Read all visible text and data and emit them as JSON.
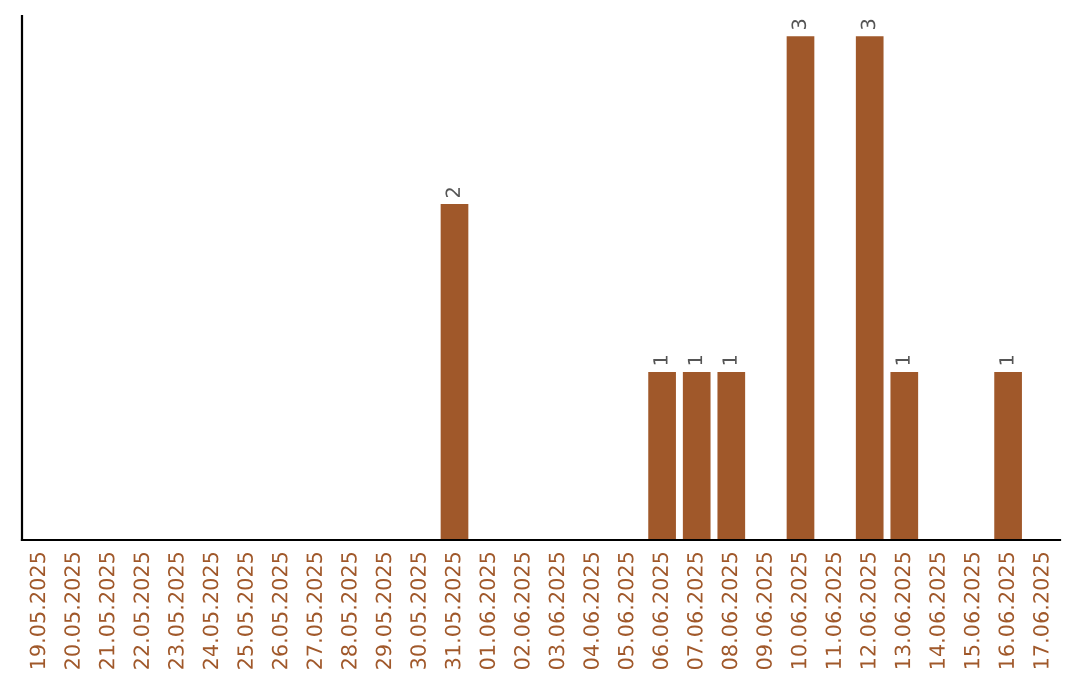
{
  "chart_data": {
    "type": "bar",
    "categories": [
      "19.05.2025",
      "20.05.2025",
      "21.05.2025",
      "22.05.2025",
      "23.05.2025",
      "24.05.2025",
      "25.05.2025",
      "26.05.2025",
      "27.05.2025",
      "28.05.2025",
      "29.05.2025",
      "30.05.2025",
      "31.05.2025",
      "01.06.2025",
      "02.06.2025",
      "03.06.2025",
      "04.06.2025",
      "05.06.2025",
      "06.06.2025",
      "07.06.2025",
      "08.06.2025",
      "09.06.2025",
      "10.06.2025",
      "11.06.2025",
      "12.06.2025",
      "13.06.2025",
      "14.06.2025",
      "15.06.2025",
      "16.06.2025",
      "17.06.2025"
    ],
    "values": [
      null,
      null,
      null,
      null,
      null,
      null,
      null,
      null,
      null,
      null,
      null,
      null,
      2,
      null,
      null,
      null,
      null,
      null,
      1,
      1,
      1,
      null,
      3,
      null,
      3,
      1,
      null,
      null,
      1,
      null
    ],
    "value_labels": [
      null,
      null,
      null,
      null,
      null,
      null,
      null,
      null,
      null,
      null,
      null,
      null,
      "2",
      null,
      null,
      null,
      null,
      null,
      "1",
      "1",
      "1",
      null,
      "3",
      null,
      "3",
      "1",
      null,
      null,
      "1",
      null
    ],
    "color": "#a0582a",
    "tick_labels": "x",
    "grid": false,
    "legend": false
  }
}
